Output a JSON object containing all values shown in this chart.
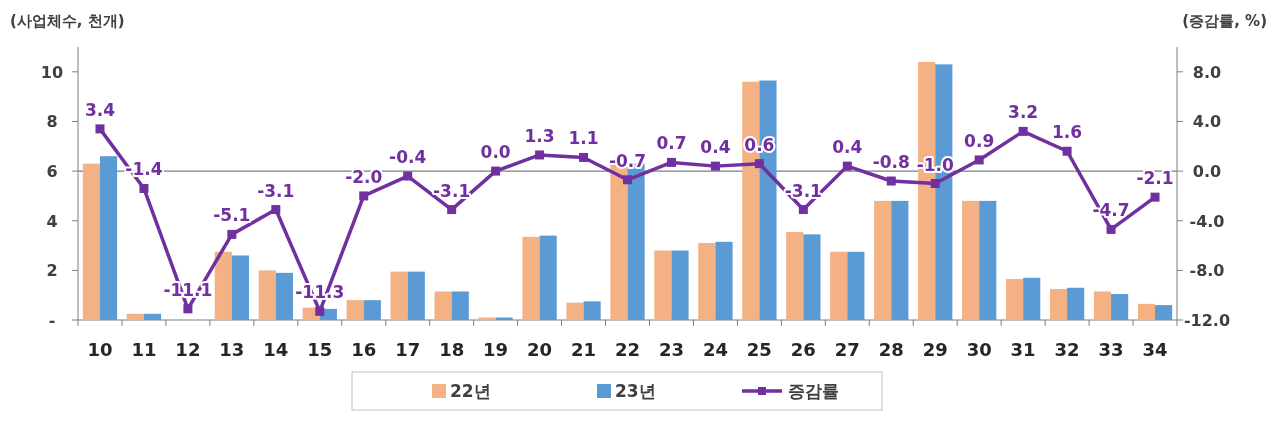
{
  "chart_data": {
    "type": "bar",
    "ylabel": "(사업체수, 천개)",
    "y2label": "(증감률, %)",
    "categories": [
      "10",
      "11",
      "12",
      "13",
      "14",
      "15",
      "16",
      "17",
      "18",
      "19",
      "20",
      "21",
      "22",
      "23",
      "24",
      "25",
      "26",
      "27",
      "28",
      "29",
      "30",
      "31",
      "32",
      "33",
      "34"
    ],
    "series": [
      {
        "name": "22년",
        "color": "#f4b183",
        "values": [
          6.3,
          0.25,
          0,
          2.75,
          2.0,
          0.5,
          0.8,
          1.95,
          1.15,
          0.1,
          3.35,
          0.7,
          6.3,
          2.8,
          3.1,
          9.6,
          3.55,
          2.75,
          4.8,
          10.4,
          4.8,
          1.65,
          1.25,
          1.15,
          0.65
        ]
      },
      {
        "name": "23년",
        "color": "#5b9bd5",
        "values": [
          6.6,
          0.25,
          0,
          2.6,
          1.9,
          0.45,
          0.8,
          1.95,
          1.15,
          0.1,
          3.4,
          0.75,
          6.3,
          2.8,
          3.15,
          9.65,
          3.45,
          2.75,
          4.8,
          10.3,
          4.8,
          1.7,
          1.3,
          1.05,
          0.6
        ]
      },
      {
        "name": "증감률",
        "type": "line",
        "axis": "y2",
        "color": "#7030a0",
        "values": [
          3.4,
          -1.4,
          -11.1,
          -5.1,
          -3.1,
          -11.3,
          -2.0,
          -0.4,
          -3.1,
          0.0,
          1.3,
          1.1,
          -0.7,
          0.7,
          0.4,
          0.6,
          -3.1,
          0.4,
          -0.8,
          -1.0,
          0.9,
          3.2,
          1.6,
          -4.7,
          -2.1
        ],
        "value_labels": [
          "3.4",
          "-1.4",
          "-11.1",
          "-5.1",
          "-3.1",
          "-11.3",
          "-2.0",
          "-0.4",
          "-3.1",
          "0.0",
          "1.3",
          "1.1",
          "-0.7",
          "0.7",
          "0.4",
          "0.6",
          "-3.1",
          "0.4",
          "-0.8",
          "-1.0",
          "0.9",
          "3.2",
          "1.6",
          "-4.7",
          "-2.1"
        ]
      }
    ],
    "ylim": [
      0,
      11
    ],
    "yticks": [
      {
        "value": 0,
        "label": "-"
      },
      2,
      4,
      6,
      8,
      10
    ],
    "y2lim": [
      -12,
      10
    ],
    "y2ticks": [
      {
        "value": -12,
        "label": "-12.0"
      },
      {
        "value": -8,
        "label": "-8.0"
      },
      {
        "value": -4,
        "label": "-4.0"
      },
      {
        "value": 0,
        "label": "0.0"
      },
      {
        "value": 4,
        "label": "4.0"
      },
      {
        "value": 8,
        "label": "8.0"
      }
    ],
    "ref_lines": [
      {
        "axis": "y2",
        "value": 0,
        "color": "#7f7f7f"
      }
    ],
    "marker": "square",
    "legend": "bottom",
    "grid": false
  }
}
